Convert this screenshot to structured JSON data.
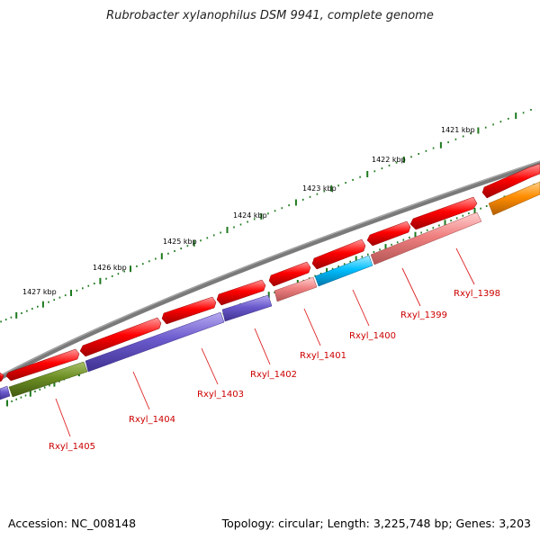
{
  "title": "Rubrobacter xylanophilus DSM 9941, complete genome",
  "footer": {
    "accession": "Accession: NC_008148",
    "summary": "Topology: circular; Length: 3,225,748 bp; Genes: 3,203"
  },
  "colors": {
    "backbone": "#7a7a7a",
    "tick": "#1e7a1e",
    "label": "#cc0000",
    "leader": "#dd2222"
  },
  "axis_labels": [
    "1421 kbp",
    "1422 kbp",
    "1423 kbp",
    "1424 kbp",
    "1425 kbp",
    "1426 kbp",
    "1427 kbp"
  ],
  "gene_labels": [
    "Rxyl_1398",
    "Rxyl_1399",
    "Rxyl_1400",
    "Rxyl_1401",
    "Rxyl_1402",
    "Rxyl_1403",
    "Rxyl_1404",
    "Rxyl_1405"
  ]
}
